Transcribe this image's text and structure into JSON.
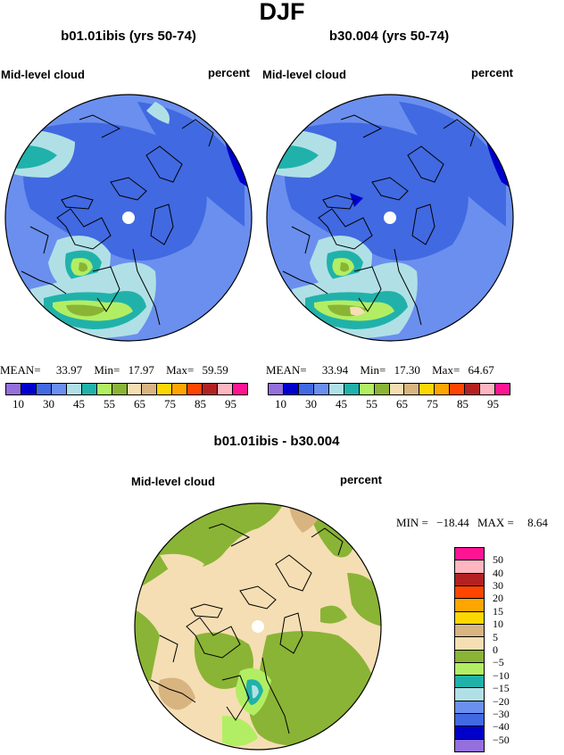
{
  "main_title": "DJF",
  "panels": [
    {
      "title": "b01.01ibis (yrs 50-74)",
      "variable": "Mid-level cloud",
      "units": "percent",
      "stats": {
        "mean_label": "MEAN=",
        "mean": "33.97",
        "min_label": "Min=",
        "min": "17.97",
        "max_label": "Max=",
        "max": "59.59"
      }
    },
    {
      "title": "b30.004 (yrs 50-74)",
      "variable": "Mid-level cloud",
      "units": "percent",
      "stats": {
        "mean_label": "MEAN=",
        "mean": "33.94",
        "min_label": "Min=",
        "min": "17.30",
        "max_label": "Max=",
        "max": "64.67"
      }
    }
  ],
  "top_colorbar": {
    "colors": [
      "#9370db",
      "#0000cd",
      "#4169e1",
      "#6a8fee",
      "#b0e0e6",
      "#20b2aa",
      "#b2ee63",
      "#8ab435",
      "#f5deb3",
      "#d8b480",
      "#ffd700",
      "#ffa500",
      "#ff4500",
      "#b22222",
      "#ffb6c1",
      "#ff1493"
    ],
    "labels": [
      "10",
      "30",
      "45",
      "55",
      "65",
      "75",
      "85",
      "95"
    ]
  },
  "diff_panel": {
    "title": "b01.01ibis - b30.004",
    "variable": "Mid-level cloud",
    "units": "percent",
    "stats": {
      "min_label": "MIN =",
      "min": "−18.44",
      "max_label": "MAX =",
      "max": "8.64"
    }
  },
  "diff_colorbar": {
    "colors": [
      "#ff1493",
      "#ffb6c1",
      "#b22222",
      "#ff4500",
      "#ffa500",
      "#ffd700",
      "#d8b480",
      "#f5deb3",
      "#8ab435",
      "#b2ee63",
      "#20b2aa",
      "#b0e0e6",
      "#6a8fee",
      "#4169e1",
      "#0000cd",
      "#9370db"
    ],
    "labels": [
      "50",
      "40",
      "30",
      "20",
      "15",
      "10",
      "5",
      "0",
      "−5",
      "−10",
      "−15",
      "−20",
      "−30",
      "−40",
      "−50"
    ]
  }
}
